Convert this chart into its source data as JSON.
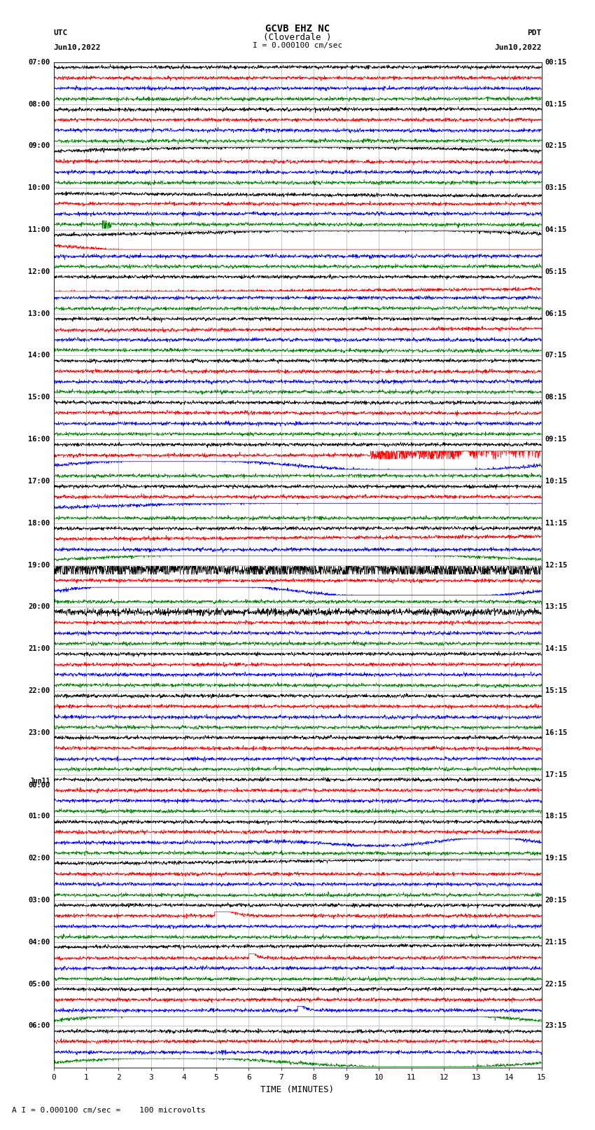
{
  "title_line1": "GCVB EHZ NC",
  "title_line2": "(Cloverdale )",
  "scale_label": "I = 0.000100 cm/sec",
  "footer_label": "A I = 0.000100 cm/sec =    100 microvolts",
  "xlabel": "TIME (MINUTES)",
  "utc_label": "UTC",
  "utc_date": "Jun10,2022",
  "pdt_label": "PDT",
  "pdt_date": "Jun10,2022",
  "left_times": [
    "07:00",
    "",
    "",
    "",
    "08:00",
    "",
    "",
    "",
    "09:00",
    "",
    "",
    "",
    "10:00",
    "",
    "",
    "",
    "11:00",
    "",
    "",
    "",
    "12:00",
    "",
    "",
    "",
    "13:00",
    "",
    "",
    "",
    "14:00",
    "",
    "",
    "",
    "15:00",
    "",
    "",
    "",
    "16:00",
    "",
    "",
    "",
    "17:00",
    "",
    "",
    "",
    "18:00",
    "",
    "",
    "",
    "19:00",
    "",
    "",
    "",
    "20:00",
    "",
    "",
    "",
    "21:00",
    "",
    "",
    "",
    "22:00",
    "",
    "",
    "",
    "23:00",
    "",
    "",
    "",
    "Jun11",
    "00:00",
    "",
    "",
    "01:00",
    "",
    "",
    "",
    "02:00",
    "",
    "",
    "",
    "03:00",
    "",
    "",
    "",
    "04:00",
    "",
    "",
    "",
    "05:00",
    "",
    "",
    "",
    "06:00",
    "",
    "",
    ""
  ],
  "right_times": [
    "00:15",
    "",
    "",
    "",
    "01:15",
    "",
    "",
    "",
    "02:15",
    "",
    "",
    "",
    "03:15",
    "",
    "",
    "",
    "04:15",
    "",
    "",
    "",
    "05:15",
    "",
    "",
    "",
    "06:15",
    "",
    "",
    "",
    "07:15",
    "",
    "",
    "",
    "08:15",
    "",
    "",
    "",
    "09:15",
    "",
    "",
    "",
    "10:15",
    "",
    "",
    "",
    "11:15",
    "",
    "",
    "",
    "12:15",
    "",
    "",
    "",
    "13:15",
    "",
    "",
    "",
    "14:15",
    "",
    "",
    "",
    "15:15",
    "",
    "",
    "",
    "16:15",
    "",
    "",
    "",
    "17:15",
    "",
    "",
    "",
    "18:15",
    "",
    "",
    "",
    "19:15",
    "",
    "",
    "",
    "20:15",
    "",
    "",
    "",
    "21:15",
    "",
    "",
    "",
    "22:15",
    "",
    "",
    "",
    "23:15",
    "",
    "",
    ""
  ],
  "num_row_groups": 24,
  "traces_per_group": 4,
  "colors": [
    "black",
    "red",
    "blue",
    "green"
  ],
  "xmin": 0,
  "xmax": 15,
  "bg_color": "#ffffff",
  "grid_color": "#888888",
  "figwidth": 8.5,
  "figheight": 16.13,
  "dpi": 100
}
